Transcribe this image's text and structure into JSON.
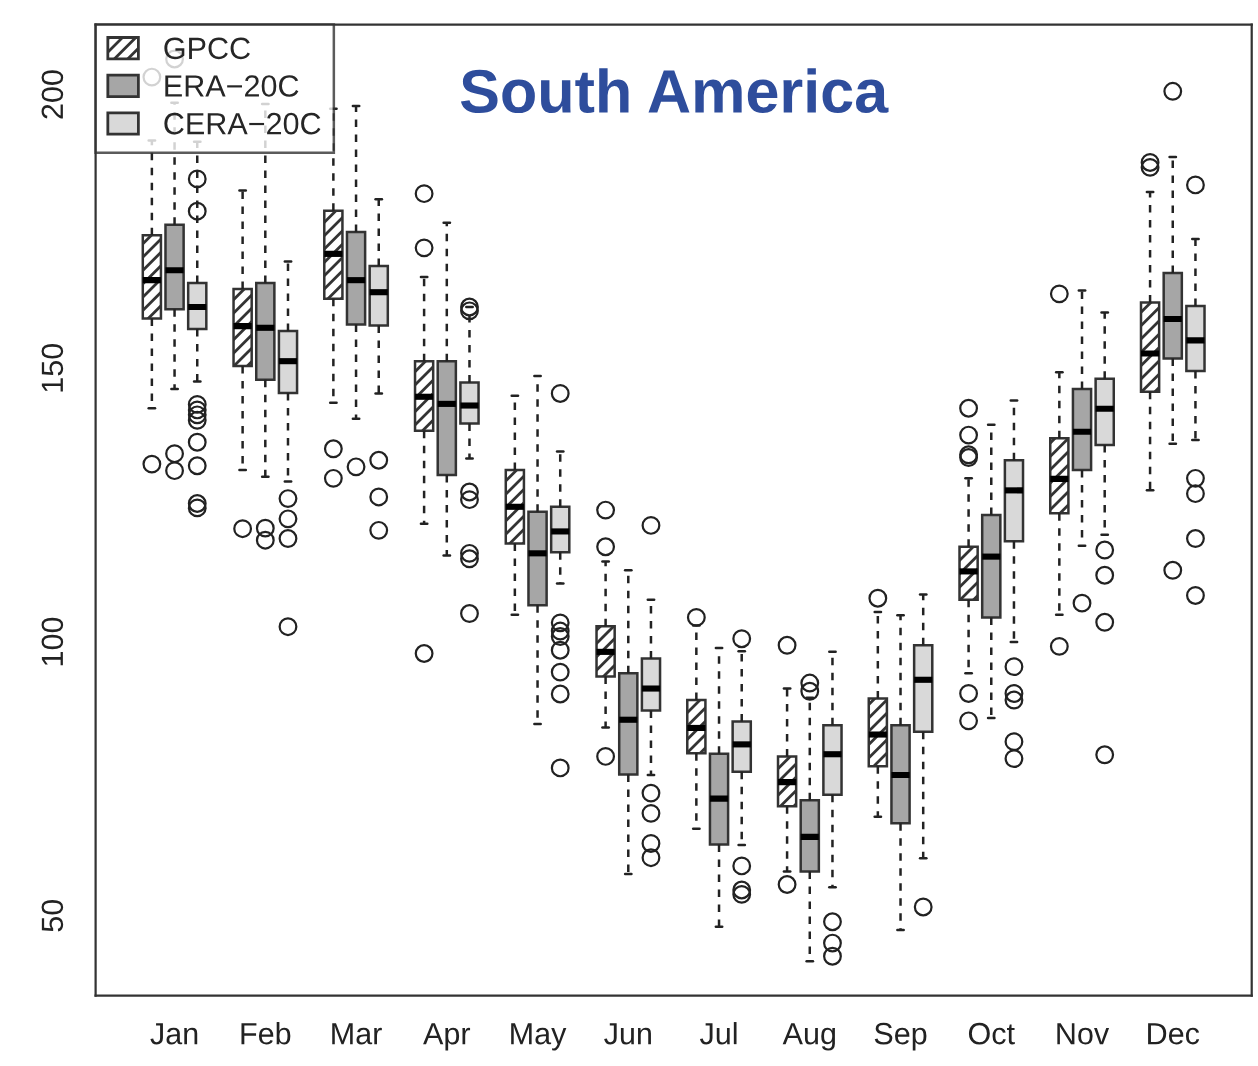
{
  "chart_data": {
    "type": "box",
    "title": "South America",
    "categories": [
      "Jan",
      "Feb",
      "Mar",
      "Apr",
      "May",
      "Jun",
      "Jul",
      "Aug",
      "Sep",
      "Oct",
      "Nov",
      "Dec"
    ],
    "ylim": [
      35.4,
      212.8
    ],
    "yticks": [
      50,
      100,
      150,
      200
    ],
    "legend": "top left",
    "grid": false,
    "series": [
      {
        "name": "GPCC",
        "color": "#333333",
        "boxes": [
          {
            "low": 142.7,
            "q1": 159.1,
            "median": 166.1,
            "q3": 174.3,
            "high": 191.6,
            "outliers": [
              132.5,
              203.2
            ]
          },
          {
            "low": 131.4,
            "q1": 150.4,
            "median": 157.7,
            "q3": 164.5,
            "high": 182.5,
            "outliers": [
              120.7
            ]
          },
          {
            "low": 143.7,
            "q1": 162.7,
            "median": 170.9,
            "q3": 178.8,
            "high": 197.4,
            "outliers": [
              135.3,
              129.9
            ]
          },
          {
            "low": 121.6,
            "q1": 138.6,
            "median": 144.8,
            "q3": 151.3,
            "high": 166.7,
            "outliers": [
              181.9,
              172.0,
              97.9
            ]
          },
          {
            "low": 105.0,
            "q1": 118.0,
            "median": 124.7,
            "q3": 131.4,
            "high": 145.0
          },
          {
            "low": 84.4,
            "q1": 93.7,
            "median": 98.2,
            "q3": 102.9,
            "high": 114.7,
            "outliers": [
              124.1,
              117.4,
              79.1
            ]
          },
          {
            "low": 65.9,
            "q1": 79.7,
            "median": 84.3,
            "q3": 89.4,
            "high": 103.0,
            "outliers": [
              104.5
            ]
          },
          {
            "low": 58.1,
            "q1": 70.0,
            "median": 74.4,
            "q3": 79.1,
            "high": 91.5,
            "outliers": [
              99.4,
              55.7
            ]
          },
          {
            "low": 68.1,
            "q1": 77.3,
            "median": 83.1,
            "q3": 89.7,
            "high": 105.5,
            "outliers": [
              108.0
            ]
          },
          {
            "low": 94.3,
            "q1": 107.7,
            "median": 112.9,
            "q3": 117.4,
            "high": 129.9,
            "outliers": [
              142.7,
              137.8,
              134.2,
              133.7,
              90.6,
              85.6
            ]
          },
          {
            "low": 105.0,
            "q1": 123.5,
            "median": 129.8,
            "q3": 137.2,
            "high": 149.3,
            "outliers": [
              163.6,
              99.2
            ]
          },
          {
            "low": 127.7,
            "q1": 145.7,
            "median": 152.7,
            "q3": 162.0,
            "high": 182.2,
            "outliers": [
              187.6,
              186.7
            ]
          }
        ]
      },
      {
        "name": "ERA−20C",
        "color": "#a6a6a6",
        "boxes": [
          {
            "low": 146.2,
            "q1": 160.8,
            "median": 167.9,
            "q3": 176.2,
            "high": 198.5,
            "outliers": [
              134.4,
              131.3,
              206.5
            ]
          },
          {
            "low": 130.2,
            "q1": 147.9,
            "median": 157.4,
            "q3": 165.6,
            "high": 198.3,
            "outliers": [
              120.8,
              118.6
            ]
          },
          {
            "low": 140.8,
            "q1": 158.0,
            "median": 166.1,
            "q3": 174.9,
            "high": 197.9,
            "outliers": [
              132.0
            ]
          },
          {
            "low": 115.8,
            "q1": 130.5,
            "median": 143.5,
            "q3": 151.3,
            "high": 176.6
          },
          {
            "low": 85.0,
            "q1": 106.7,
            "median": 116.2,
            "q3": 123.8,
            "high": 148.6
          },
          {
            "low": 57.6,
            "q1": 75.8,
            "median": 85.8,
            "q3": 94.3,
            "high": 113.1
          },
          {
            "low": 48.0,
            "q1": 63.0,
            "median": 71.4,
            "q3": 79.6,
            "high": 98.9
          },
          {
            "low": 41.7,
            "q1": 58.1,
            "median": 64.4,
            "q3": 71.1,
            "high": 89.8,
            "outliers": [
              92.5,
              91.0
            ]
          },
          {
            "low": 47.4,
            "q1": 66.9,
            "median": 75.7,
            "q3": 84.8,
            "high": 104.9
          },
          {
            "low": 86.1,
            "q1": 104.5,
            "median": 115.6,
            "q3": 123.2,
            "high": 139.7
          },
          {
            "low": 117.6,
            "q1": 131.4,
            "median": 138.4,
            "q3": 146.2,
            "high": 164.2,
            "outliers": [
              107.1
            ]
          },
          {
            "low": 136.2,
            "q1": 151.8,
            "median": 159.0,
            "q3": 167.4,
            "high": 188.6,
            "outliers": [
              200.6,
              113.1
            ]
          }
        ]
      },
      {
        "name": "CERA−20C",
        "color": "#d9d9d9",
        "boxes": [
          {
            "low": 147.6,
            "q1": 157.2,
            "median": 161.2,
            "q3": 165.6,
            "high": 191.4,
            "outliers": [
              184.6,
              178.7,
              143.4,
              142.4,
              141.5,
              140.5,
              136.5,
              132.2,
              125.3,
              124.5
            ]
          },
          {
            "low": 129.3,
            "q1": 145.5,
            "median": 151.3,
            "q3": 156.8,
            "high": 169.5,
            "outliers": [
              126.2,
              122.5,
              118.9,
              102.8
            ]
          },
          {
            "low": 145.4,
            "q1": 157.8,
            "median": 163.9,
            "q3": 168.7,
            "high": 180.9,
            "outliers": [
              133.2,
              126.5,
              120.4
            ]
          },
          {
            "low": 133.5,
            "q1": 139.9,
            "median": 143.2,
            "q3": 147.4,
            "high": 161.2,
            "outliers": [
              161.2,
              160.5,
              127.4,
              126.0,
              116.2,
              115.2,
              105.2
            ]
          },
          {
            "low": 110.7,
            "q1": 116.4,
            "median": 120.2,
            "q3": 124.7,
            "high": 134.8,
            "outliers": [
              145.4,
              103.5,
              102.0,
              101.0,
              98.5,
              94.5,
              90.5,
              77.0
            ]
          },
          {
            "low": 75.7,
            "q1": 87.5,
            "median": 91.5,
            "q3": 97.0,
            "high": 107.7,
            "outliers": [
              121.3,
              72.4,
              68.7,
              63.2,
              60.6
            ]
          },
          {
            "low": 62.9,
            "q1": 76.3,
            "median": 81.3,
            "q3": 85.5,
            "high": 98.3,
            "outliers": [
              100.6,
              59.1,
              54.7,
              53.9
            ]
          },
          {
            "low": 55.2,
            "q1": 72.1,
            "median": 79.5,
            "q3": 84.8,
            "high": 98.2,
            "outliers": [
              48.9,
              45.0,
              42.6
            ]
          },
          {
            "low": 60.5,
            "q1": 83.6,
            "median": 93.1,
            "q3": 99.4,
            "high": 108.7,
            "outliers": [
              51.6
            ]
          },
          {
            "low": 100.0,
            "q1": 118.4,
            "median": 127.7,
            "q3": 133.2,
            "high": 144.1,
            "outliers": [
              95.5,
              90.6,
              89.4,
              81.8,
              78.7
            ]
          },
          {
            "low": 119.6,
            "q1": 136.0,
            "median": 142.6,
            "q3": 148.1,
            "high": 160.2,
            "outliers": [
              116.8,
              112.2,
              103.6,
              79.4
            ]
          },
          {
            "low": 136.9,
            "q1": 149.5,
            "median": 155.1,
            "q3": 161.4,
            "high": 173.6,
            "outliers": [
              183.5,
              129.9,
              127.1,
              118.9,
              108.5
            ]
          }
        ]
      }
    ]
  }
}
